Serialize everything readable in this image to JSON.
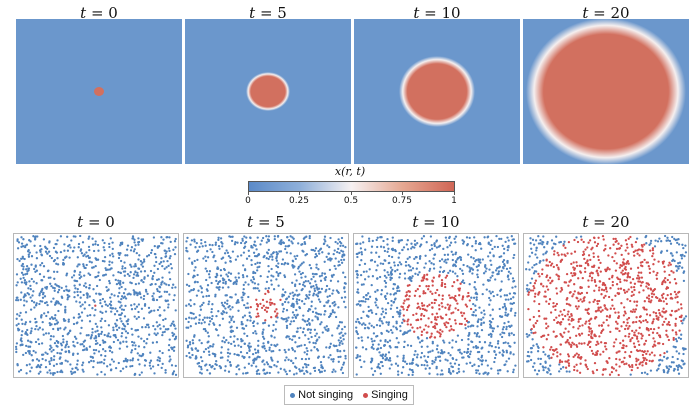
{
  "colors": {
    "field": "#6b97cc",
    "active": "#d2705f",
    "not_singing": "#4f83be",
    "singing": "#d14c4c"
  },
  "field_panels": [
    {
      "time": "0",
      "radius_fraction": 0.03
    },
    {
      "time": "5",
      "radius_fraction": 0.13
    },
    {
      "time": "10",
      "radius_fraction": 0.23
    },
    {
      "time": "20",
      "radius_fraction": 0.48
    }
  ],
  "scatter_panels": [
    {
      "time": "0",
      "singing_radius_fraction": 0.02
    },
    {
      "time": "5",
      "singing_radius_fraction": 0.1
    },
    {
      "time": "10",
      "singing_radius_fraction": 0.22
    },
    {
      "time": "20",
      "singing_radius_fraction": 0.48
    }
  ],
  "title_prefix": "t = ",
  "colorbar": {
    "label": "x(r, t)",
    "ticks": [
      "0",
      "0.25",
      "0.5",
      "0.75",
      "1"
    ]
  },
  "legend": {
    "not_singing": "Not singing",
    "singing": "Singing"
  }
}
